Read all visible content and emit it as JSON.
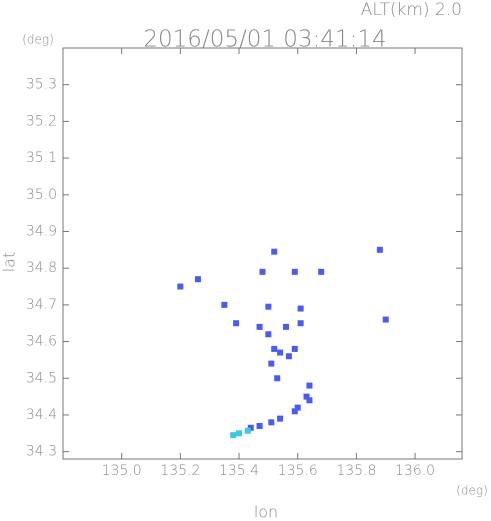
{
  "chart_data": {
    "type": "scatter",
    "title": "2016/05/01 03:41:14",
    "subtitle": "ALT(km) 2.0",
    "x_label": "lon",
    "y_label": "lat",
    "x_unit": "(deg)",
    "y_unit": "(deg)",
    "xlim": [
      134.8,
      136.16
    ],
    "ylim": [
      34.28,
      35.4
    ],
    "xticks": [
      {
        "value": 135,
        "label": "135.0"
      },
      135.2,
      135.4,
      135.6,
      135.8,
      {
        "value": 136,
        "label": "136.0"
      }
    ],
    "yticks": [
      34.3,
      34.4,
      34.5,
      34.6,
      34.7,
      34.8,
      34.9,
      {
        "value": 35,
        "label": "35.0"
      },
      35.1,
      35.2,
      35.3
    ],
    "series": [
      {
        "color": "#4a5cf0",
        "x": [
          135.2,
          135.26,
          135.35,
          135.52,
          135.48,
          135.59,
          135.68,
          135.88,
          135.9,
          135.39,
          135.5,
          135.61,
          135.47,
          135.5,
          135.56,
          135.61,
          135.54,
          135.57,
          135.52,
          135.59,
          135.53,
          135.51,
          135.64,
          135.63,
          135.64,
          135.6,
          135.59,
          135.54,
          135.51,
          135.47,
          135.44
        ],
        "values": [
          34.75,
          34.77,
          34.7,
          34.845,
          34.79,
          34.79,
          34.79,
          34.85,
          34.66,
          34.65,
          34.695,
          34.69,
          34.64,
          34.62,
          34.64,
          34.65,
          34.57,
          34.56,
          34.58,
          34.58,
          34.5,
          34.54,
          34.48,
          34.45,
          34.44,
          34.42,
          34.41,
          34.39,
          34.38,
          34.37,
          34.365
        ]
      },
      {
        "color": "#3cc8e8",
        "x": [
          135.43,
          135.4,
          135.38
        ],
        "values": [
          34.357,
          34.35,
          34.345
        ]
      }
    ]
  }
}
